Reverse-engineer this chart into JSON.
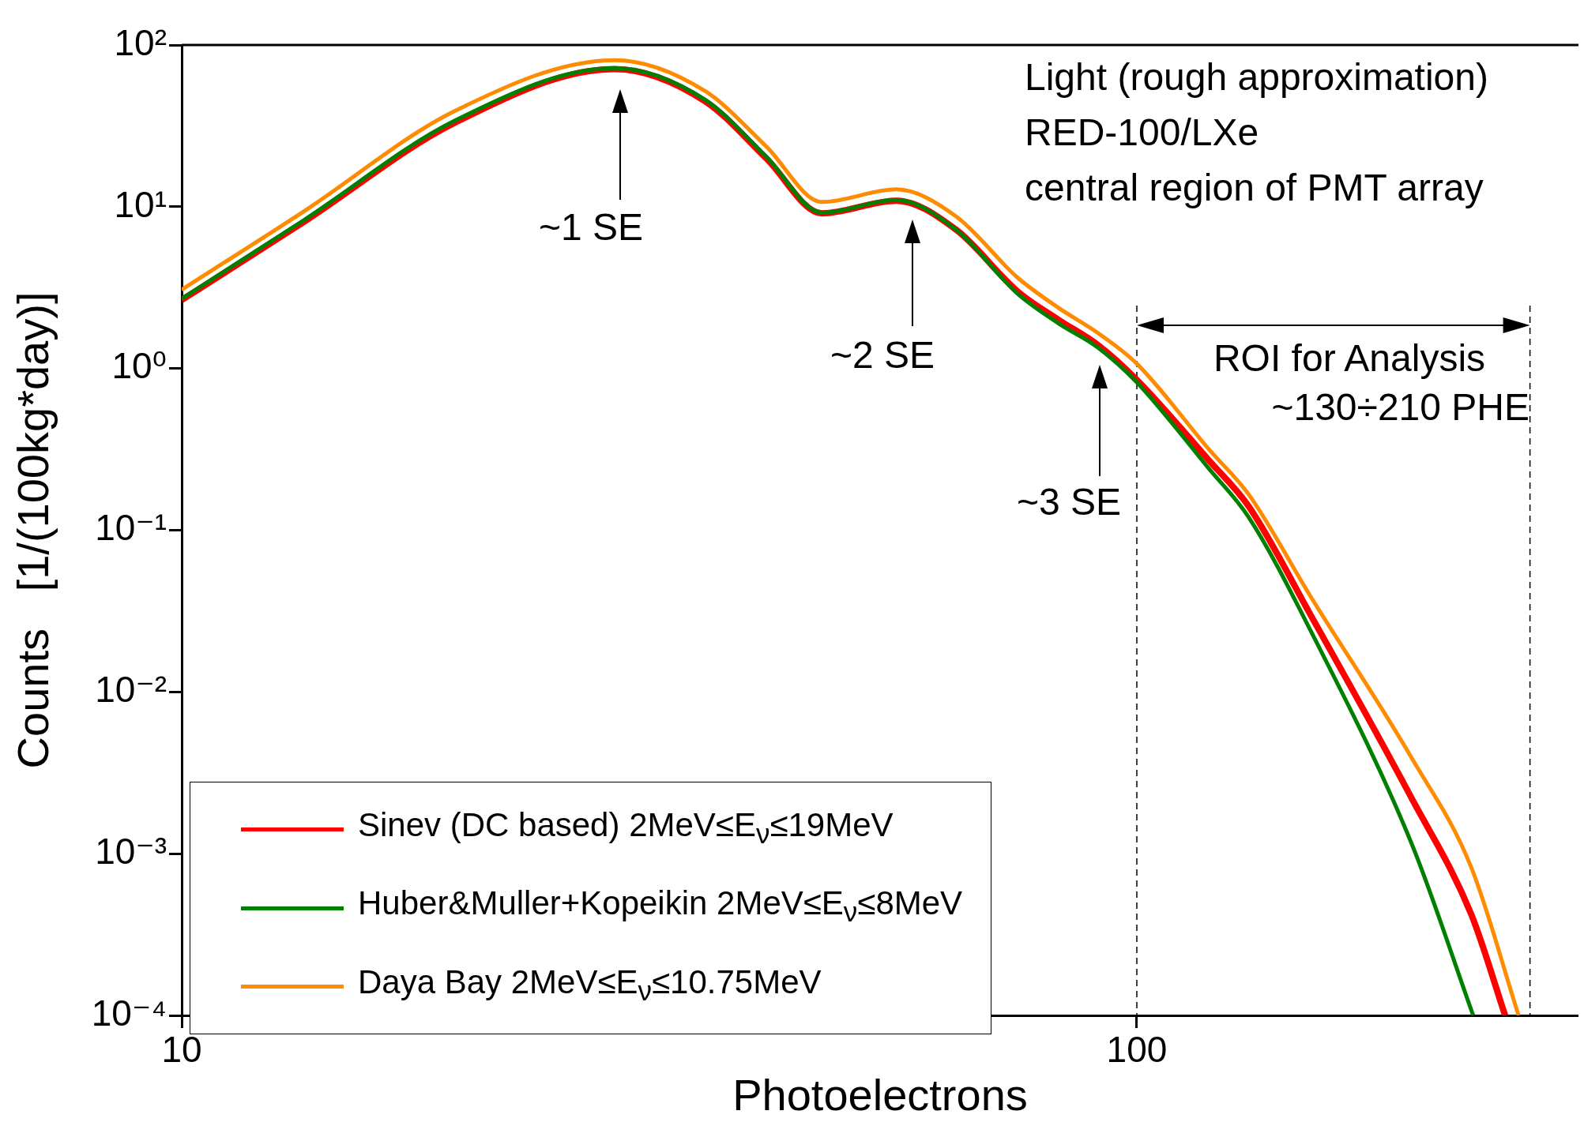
{
  "chart_data": {
    "type": "line",
    "xlabel": "Photoelectrons",
    "ylabel": "Counts   [1/(100kg*day)]",
    "log": "xy",
    "grid": false,
    "legend": "bottom left",
    "line_style": "solid",
    "marker": "none",
    "xlim": [
      10,
      290
    ],
    "xticks": [
      10,
      100
    ],
    "ylim": [
      0.0001,
      100
    ],
    "yticks": [
      {
        "value": 0.0001,
        "label": "10⁻⁴"
      },
      {
        "value": 0.001,
        "label": "10⁻³"
      },
      {
        "value": 0.01,
        "label": "10⁻²"
      },
      {
        "value": 0.1,
        "label": "10⁻¹"
      },
      {
        "value": 1,
        "label": "10⁰"
      },
      {
        "value": 10,
        "label": "10¹"
      },
      {
        "value": 100,
        "label": "10²"
      }
    ],
    "series": [
      {
        "name": "Sinev (DC based) 2MeV≤E$_{ν}$≤19MeV",
        "color": "#ff0000",
        "x": [
          10,
          13.4,
          19.3,
          28.4,
          35.3,
          40.9,
          46.8,
          56,
          64.7,
          75,
          82.8,
          91,
          100,
          119,
          131,
          152,
          194,
          224,
          243
        ],
        "values": [
          2.65,
          8.0,
          33,
          71,
          45,
          20,
          9.1,
          10.9,
          7.2,
          3.0,
          2.0,
          1.4,
          0.85,
          0.27,
          0.14,
          0.03,
          0.0022,
          0.00042,
          0.0001
        ]
      },
      {
        "name": "Huber&Muller+Kopeikin 2MeV≤E$_{ν}$≤8MeV",
        "color": "#008000",
        "x": [
          10,
          13.4,
          19.3,
          28.4,
          35.3,
          40.9,
          46.8,
          56,
          64.7,
          75,
          82.8,
          91,
          100,
          119,
          131,
          152,
          194,
          225
        ],
        "values": [
          2.7,
          8.2,
          34,
          72,
          46,
          20.5,
          9.2,
          11,
          7.2,
          2.9,
          1.9,
          1.35,
          0.82,
          0.24,
          0.12,
          0.024,
          0.00115,
          0.0001
        ]
      },
      {
        "name": "Daya Bay   2MeV≤E$_{ν}$≤10.75MeV",
        "color": "#ff8c00",
        "x": [
          10,
          13.4,
          19.3,
          28.4,
          35.3,
          40.9,
          46.8,
          56,
          64.7,
          75,
          82.8,
          91,
          100,
          119,
          131,
          152,
          194,
          224,
          251
        ],
        "values": [
          3.07,
          9.3,
          39,
          80.6,
          52,
          23.7,
          10.7,
          12.8,
          8.7,
          3.65,
          2.37,
          1.66,
          1.07,
          0.316,
          0.166,
          0.039,
          0.0039,
          0.00082,
          0.0001
        ]
      }
    ],
    "ref_lines": [
      {
        "axis": "x",
        "value": 100,
        "line_style": "dashed",
        "color": "#000000"
      },
      {
        "axis": "x",
        "value": 258,
        "line_style": "dashed",
        "color": "#000000"
      }
    ],
    "annotations": [
      "Light (rough approximation)",
      "RED-100/LXe",
      "central region of PMT array",
      "~1 SE",
      "~2 SE",
      "~3 SE",
      "ROI for Analysis",
      "~130÷210 PHE"
    ]
  }
}
